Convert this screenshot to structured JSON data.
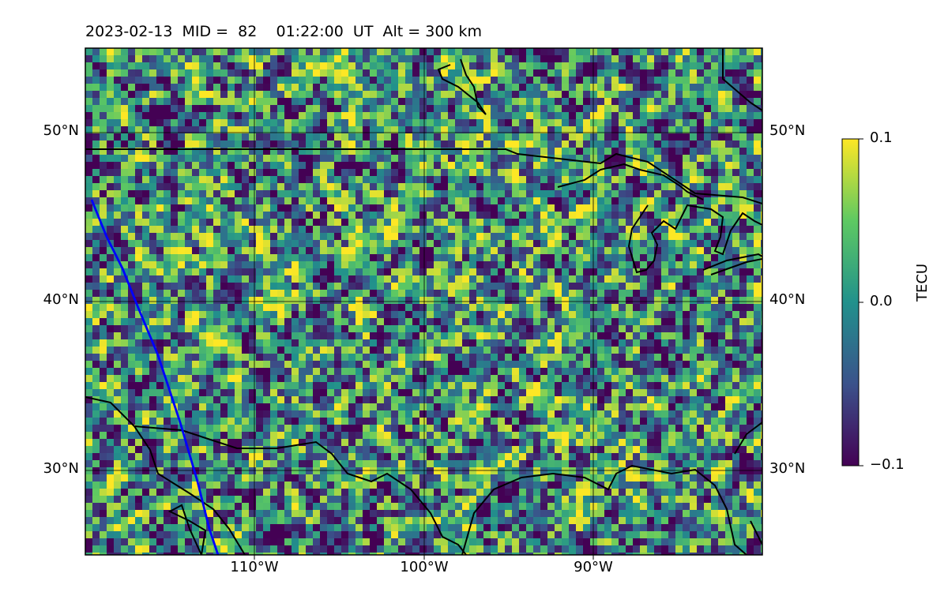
{
  "map": {
    "title": "2023-02-13  MID =  82    01:22:00  UT  Alt = 300 km",
    "lat_ticks": [
      "50°N",
      "40°N",
      "30°N"
    ],
    "lon_ticks": [
      "110°W",
      "100°W",
      "90°W"
    ],
    "lat_range": [
      25,
      55
    ],
    "lon_range": [
      -120,
      -80
    ],
    "gridlines": true,
    "track_color": "#0000ff",
    "coast_color": "#000000"
  },
  "colorbar": {
    "title": "TECU",
    "min_label": "−0.1",
    "mid_label": "0.0",
    "max_label": "0.1",
    "range": [
      -0.1,
      0.1
    ],
    "colormap": [
      "#440154",
      "#3b528b",
      "#21918c",
      "#5ec962",
      "#fde725"
    ]
  }
}
